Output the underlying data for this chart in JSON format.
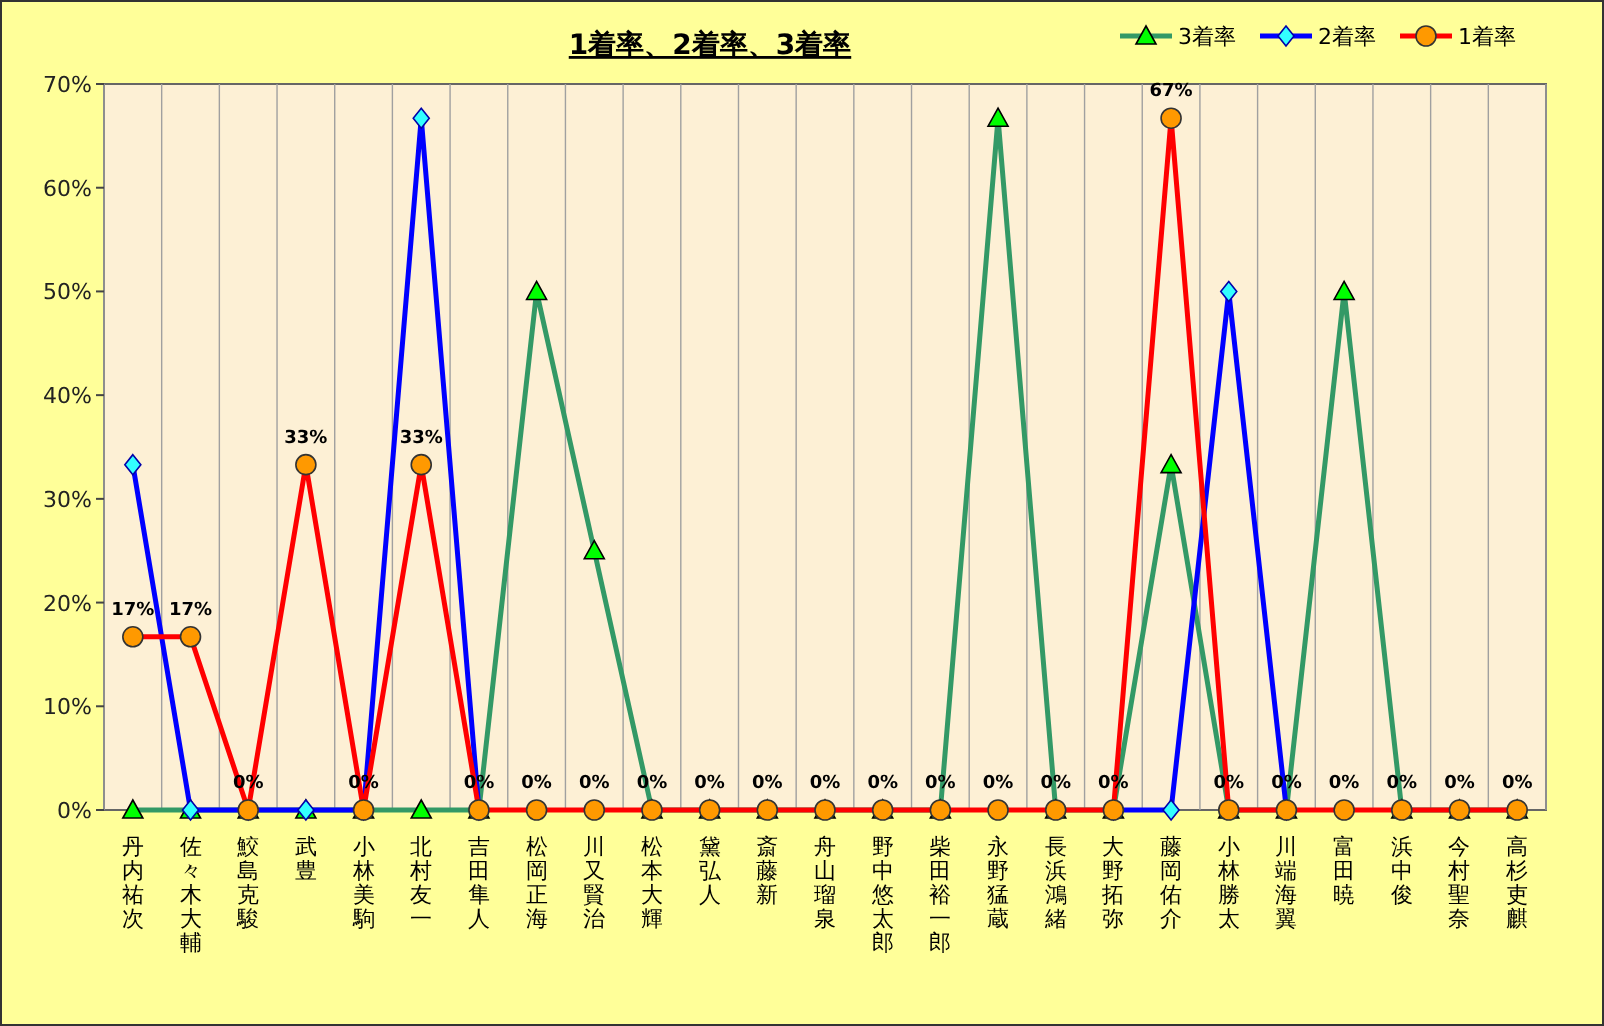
{
  "chart_data": {
    "type": "line",
    "title": "1着率、2着率、3着率",
    "categories": [
      "丹内祐次",
      "佐々木大輔",
      "鮫島克駿",
      "武豊",
      "小林美駒",
      "北村友一",
      "吉田隼人",
      "松岡正海",
      "川又賢治",
      "松本大輝",
      "黛弘人",
      "斎藤新",
      "舟山瑠泉",
      "野中悠太郎",
      "柴田裕一郎",
      "永野猛蔵",
      "長浜鴻緒",
      "大野拓弥",
      "藤岡佑介",
      "小林勝太",
      "川端海翼",
      "富田暁",
      "浜中俊",
      "今村聖奈",
      "高杉吏麒"
    ],
    "series": [
      {
        "name": "3着率",
        "color": "#339966",
        "marker": "triangle",
        "values": [
          0,
          0,
          0,
          0,
          0,
          0,
          0,
          50,
          25,
          0,
          0,
          0,
          0,
          0,
          0,
          66.7,
          0,
          0,
          33.3,
          0,
          0,
          50,
          0,
          0,
          0
        ]
      },
      {
        "name": "2着率",
        "color": "#0000ff",
        "marker": "diamond",
        "values": [
          33.3,
          0,
          0,
          0,
          0,
          66.7,
          0,
          null,
          null,
          null,
          null,
          null,
          null,
          null,
          null,
          null,
          null,
          0,
          0,
          50,
          0,
          null,
          null,
          null,
          null
        ]
      },
      {
        "name": "1着率",
        "color": "#ff0000",
        "marker": "circle",
        "values": [
          16.7,
          16.7,
          0,
          33.3,
          0,
          33.3,
          0,
          0,
          0,
          0,
          0,
          0,
          0,
          0,
          0,
          0,
          0,
          0,
          66.7,
          0,
          0,
          0,
          0,
          0,
          0
        ],
        "value_labels": [
          "17%",
          "17%",
          "0%",
          "33%",
          "0%",
          "33%",
          "0%",
          "0%",
          "0%",
          "0%",
          "0%",
          "0%",
          "0%",
          "0%",
          "0%",
          "0%",
          "0%",
          "0%",
          "67%",
          "0%",
          "0%",
          "0%",
          "0%",
          "0%",
          "0%"
        ]
      }
    ],
    "ylim": [
      0,
      70
    ],
    "yticks": [
      {
        "value": 0,
        "label": "0%"
      },
      {
        "value": 10,
        "label": "10%"
      },
      {
        "value": 20,
        "label": "20%"
      },
      {
        "value": 30,
        "label": "30%"
      },
      {
        "value": 40,
        "label": "40%"
      },
      {
        "value": 50,
        "label": "50%"
      },
      {
        "value": 60,
        "label": "60%"
      },
      {
        "value": 70,
        "label": "70%"
      }
    ],
    "grid": "x",
    "legend": "top right"
  }
}
